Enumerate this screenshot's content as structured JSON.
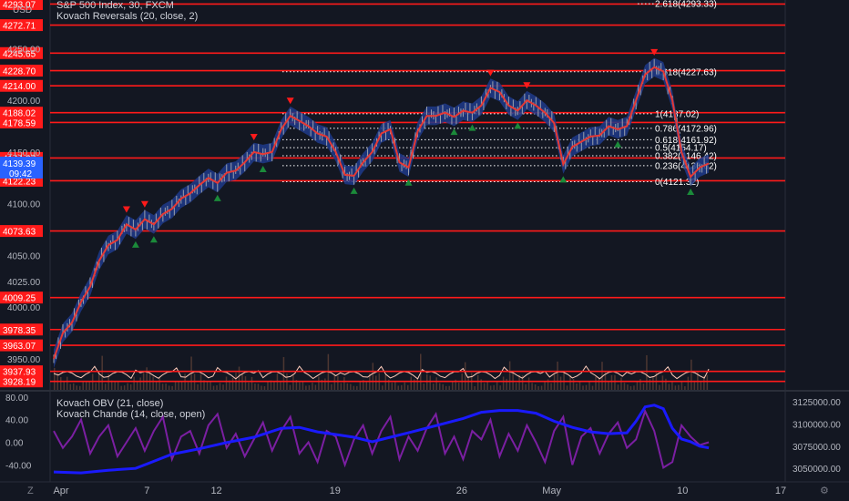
{
  "main_legend": {
    "symbol": "S&P 500 Index, 30, FXCM",
    "indicator": "Kovach Reversals (20, close, 2)"
  },
  "lower_legend": {
    "obv": "Kovach OBV (21, close)",
    "chande": "Kovach Chande (14, close, open)"
  },
  "currency": "USD",
  "corner_left": "Z",
  "corner_right": "⚙",
  "colors": {
    "background": "#131722",
    "level_line": "#ff1a1a",
    "price_line": "#e53935",
    "band": "#1e3a8a",
    "obv_line": "#1a1aff",
    "chande_line": "#7b1fa2",
    "up_arrow": "#1b8a3a",
    "down_arrow": "#ff1a1a",
    "fib_line": "#ffffff",
    "volume": "#5d4037",
    "osc_line": "#ffccbc"
  },
  "chart_data": [
    {
      "type": "line",
      "title": "S&P 500 Index, 30, FXCM",
      "x_labels": [
        "Apr",
        "7",
        "12",
        "19",
        "26",
        "May",
        "10",
        "17"
      ],
      "price_axis_ticks": [
        "4250.00",
        "4200.00",
        "4150.00",
        "4100.00",
        "4050.00",
        "4025.00",
        "4000.00",
        "3950.00"
      ],
      "ylim": [
        3920,
        4297
      ],
      "horizontal_levels": [
        {
          "label": "4293.07",
          "value": 4293.07
        },
        {
          "label": "4272.71",
          "value": 4272.71
        },
        {
          "label": "4245.65",
          "value": 4245.65
        },
        {
          "label": "4228.70",
          "value": 4228.7
        },
        {
          "label": "4214.00",
          "value": 4214.0
        },
        {
          "label": "4188.02",
          "value": 4188.02
        },
        {
          "label": "4178.59",
          "value": 4178.59
        },
        {
          "label": "4144.27",
          "value": 4144.27
        },
        {
          "label": "4122.23",
          "value": 4122.23
        },
        {
          "label": "4073.63",
          "value": 4073.63
        },
        {
          "label": "4009.25",
          "value": 4009.25
        },
        {
          "label": "3978.35",
          "value": 3978.35
        },
        {
          "label": "3963.07",
          "value": 3963.07
        },
        {
          "label": "3937.93",
          "value": 3937.93
        },
        {
          "label": "3928.19",
          "value": 3928.19
        }
      ],
      "current_price": {
        "label": "4139.39",
        "countdown": "09:42",
        "value": 4139.39
      },
      "fib_levels": [
        {
          "label": "2.618(4293.33)",
          "value": 4293.33
        },
        {
          "label": "1.618(4227.63)",
          "value": 4227.63
        },
        {
          "label": "1(4187.02)",
          "value": 4187.02
        },
        {
          "label": "0.786(4172.96)",
          "value": 4172.96
        },
        {
          "label": "0.618(4161.92)",
          "value": 4161.92
        },
        {
          "label": "0.5(4154.17)",
          "value": 4154.17
        },
        {
          "label": "0.382(4146.42)",
          "value": 4146.42
        },
        {
          "label": "0.236(4136.82)",
          "value": 4136.82
        },
        {
          "label": "0(4121.32)",
          "value": 4121.32
        }
      ],
      "price_path": [
        [
          0,
          3950
        ],
        [
          2,
          3975
        ],
        [
          4,
          3985
        ],
        [
          6,
          4005
        ],
        [
          8,
          4020
        ],
        [
          10,
          4045
        ],
        [
          12,
          4060
        ],
        [
          14,
          4065
        ],
        [
          16,
          4080
        ],
        [
          18,
          4075
        ],
        [
          20,
          4085
        ],
        [
          22,
          4080
        ],
        [
          24,
          4090
        ],
        [
          26,
          4095
        ],
        [
          28,
          4105
        ],
        [
          30,
          4110
        ],
        [
          32,
          4118
        ],
        [
          34,
          4125
        ],
        [
          36,
          4120
        ],
        [
          38,
          4130
        ],
        [
          40,
          4132
        ],
        [
          42,
          4140
        ],
        [
          44,
          4150
        ],
        [
          46,
          4148
        ],
        [
          48,
          4150
        ],
        [
          50,
          4172
        ],
        [
          52,
          4185
        ],
        [
          54,
          4180
        ],
        [
          56,
          4175
        ],
        [
          58,
          4168
        ],
        [
          60,
          4165
        ],
        [
          62,
          4150
        ],
        [
          64,
          4128
        ],
        [
          66,
          4127
        ],
        [
          68,
          4140
        ],
        [
          70,
          4150
        ],
        [
          72,
          4168
        ],
        [
          74,
          4172
        ],
        [
          76,
          4140
        ],
        [
          78,
          4135
        ],
        [
          80,
          4170
        ],
        [
          82,
          4185
        ],
        [
          84,
          4185
        ],
        [
          86,
          4188
        ],
        [
          88,
          4184
        ],
        [
          90,
          4190
        ],
        [
          92,
          4188
        ],
        [
          94,
          4195
        ],
        [
          96,
          4212
        ],
        [
          98,
          4208
        ],
        [
          100,
          4195
        ],
        [
          102,
          4190
        ],
        [
          104,
          4200
        ],
        [
          106,
          4195
        ],
        [
          108,
          4188
        ],
        [
          110,
          4178
        ],
        [
          112,
          4138
        ],
        [
          114,
          4155
        ],
        [
          116,
          4160
        ],
        [
          118,
          4165
        ],
        [
          120,
          4166
        ],
        [
          122,
          4175
        ],
        [
          124,
          4172
        ],
        [
          126,
          4175
        ],
        [
          128,
          4200
        ],
        [
          130,
          4225
        ],
        [
          132,
          4232
        ],
        [
          134,
          4228
        ],
        [
          136,
          4200
        ],
        [
          138,
          4150
        ],
        [
          140,
          4126
        ],
        [
          142,
          4135
        ],
        [
          144,
          4139
        ]
      ],
      "x_max": 160
    },
    {
      "type": "line",
      "title": "Kovach OBV / Kovach Chande",
      "left_ticks": [
        "80.00",
        "40.00",
        "0.00",
        "-40.00"
      ],
      "right_ticks": [
        "3125000.00",
        "3100000.00",
        "3075000.00",
        "3050000.00"
      ],
      "left_range": [
        -62,
        83
      ],
      "right_range": [
        3040000,
        3132000
      ],
      "series": [
        {
          "name": "Kovach OBV (21, close)",
          "values": [
            [
              0,
              3046000
            ],
            [
              6,
              3045000
            ],
            [
              12,
              3048000
            ],
            [
              18,
              3050000
            ],
            [
              22,
              3058000
            ],
            [
              26,
              3066000
            ],
            [
              32,
              3072000
            ],
            [
              38,
              3079000
            ],
            [
              44,
              3085000
            ],
            [
              50,
              3095000
            ],
            [
              54,
              3096000
            ],
            [
              58,
              3091000
            ],
            [
              62,
              3088000
            ],
            [
              66,
              3085000
            ],
            [
              70,
              3080000
            ],
            [
              74,
              3085000
            ],
            [
              78,
              3090000
            ],
            [
              84,
              3098000
            ],
            [
              90,
              3106000
            ],
            [
              94,
              3113000
            ],
            [
              98,
              3115000
            ],
            [
              102,
              3115000
            ],
            [
              106,
              3112000
            ],
            [
              110,
              3103000
            ],
            [
              114,
              3096000
            ],
            [
              118,
              3091000
            ],
            [
              122,
              3089000
            ],
            [
              126,
              3090000
            ],
            [
              128,
              3103000
            ],
            [
              130,
              3119000
            ],
            [
              132,
              3121000
            ],
            [
              134,
              3117000
            ],
            [
              136,
              3095000
            ],
            [
              138,
              3083000
            ],
            [
              140,
              3080000
            ],
            [
              142,
              3075000
            ],
            [
              144,
              3073000
            ]
          ]
        },
        {
          "name": "Kovach Chande (14, close, open)",
          "values": [
            [
              0,
              20
            ],
            [
              2,
              -10
            ],
            [
              4,
              10
            ],
            [
              6,
              40
            ],
            [
              8,
              -20
            ],
            [
              10,
              10
            ],
            [
              12,
              30
            ],
            [
              14,
              -25
            ],
            [
              16,
              0
            ],
            [
              18,
              25
            ],
            [
              20,
              -15
            ],
            [
              22,
              20
            ],
            [
              24,
              45
            ],
            [
              26,
              -30
            ],
            [
              28,
              10
            ],
            [
              30,
              20
            ],
            [
              32,
              -20
            ],
            [
              34,
              30
            ],
            [
              36,
              50
            ],
            [
              38,
              -10
            ],
            [
              40,
              15
            ],
            [
              42,
              -25
            ],
            [
              44,
              5
            ],
            [
              46,
              35
            ],
            [
              48,
              -15
            ],
            [
              50,
              20
            ],
            [
              52,
              45
            ],
            [
              54,
              -20
            ],
            [
              56,
              0
            ],
            [
              58,
              -35
            ],
            [
              60,
              20
            ],
            [
              62,
              10
            ],
            [
              64,
              -40
            ],
            [
              66,
              5
            ],
            [
              68,
              30
            ],
            [
              70,
              -20
            ],
            [
              72,
              20
            ],
            [
              74,
              45
            ],
            [
              76,
              -30
            ],
            [
              78,
              10
            ],
            [
              80,
              -15
            ],
            [
              82,
              25
            ],
            [
              84,
              50
            ],
            [
              86,
              -20
            ],
            [
              88,
              10
            ],
            [
              90,
              -30
            ],
            [
              92,
              20
            ],
            [
              94,
              5
            ],
            [
              96,
              40
            ],
            [
              98,
              -25
            ],
            [
              100,
              15
            ],
            [
              102,
              -15
            ],
            [
              104,
              30
            ],
            [
              106,
              0
            ],
            [
              108,
              -35
            ],
            [
              110,
              20
            ],
            [
              112,
              45
            ],
            [
              114,
              -40
            ],
            [
              116,
              10
            ],
            [
              118,
              25
            ],
            [
              120,
              -20
            ],
            [
              122,
              15
            ],
            [
              124,
              35
            ],
            [
              126,
              -10
            ],
            [
              128,
              5
            ],
            [
              130,
              55
            ],
            [
              132,
              20
            ],
            [
              134,
              -45
            ],
            [
              136,
              -35
            ],
            [
              138,
              30
            ],
            [
              140,
              10
            ],
            [
              142,
              -5
            ],
            [
              144,
              0
            ]
          ]
        }
      ]
    }
  ]
}
